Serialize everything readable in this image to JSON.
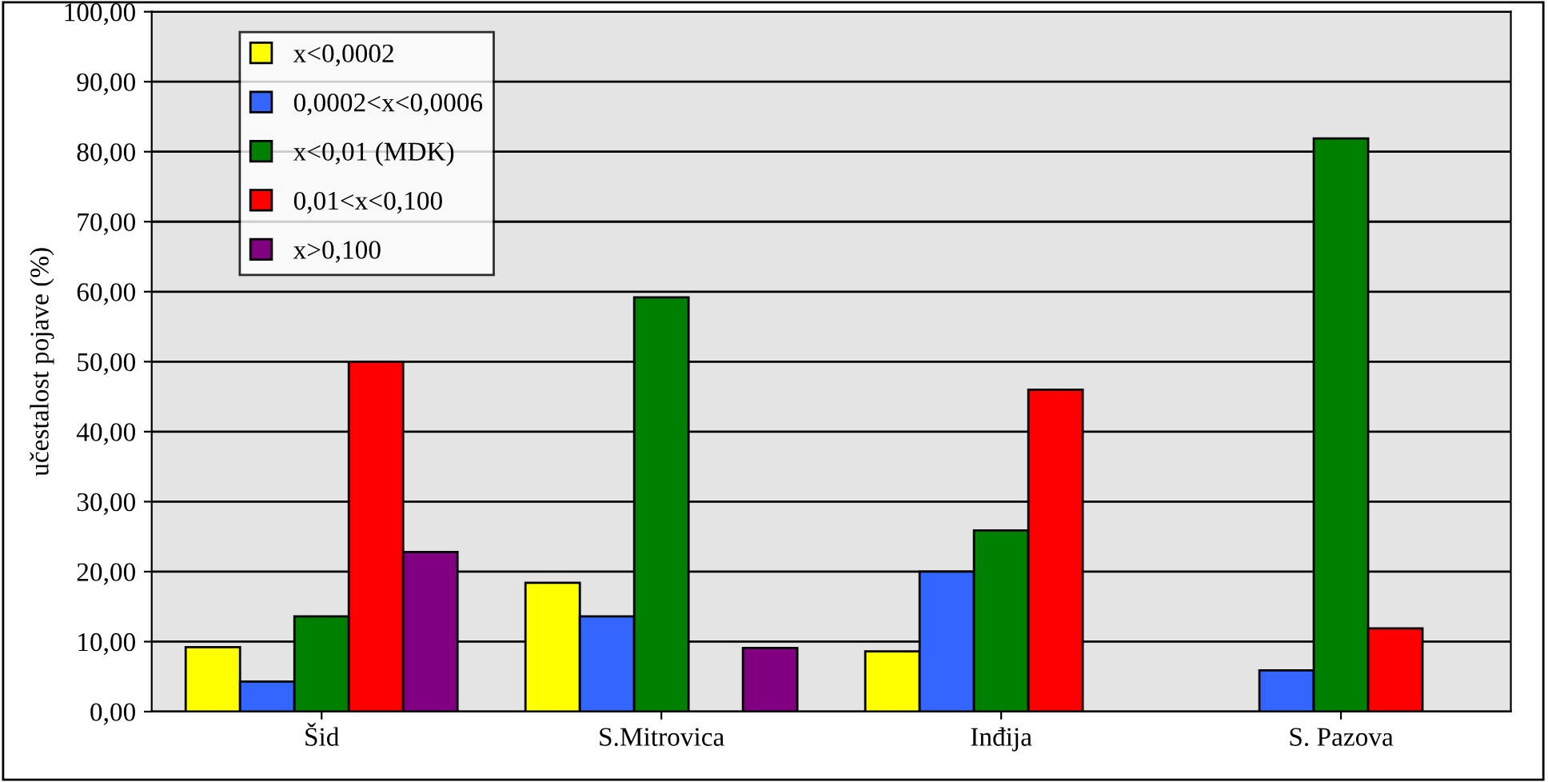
{
  "chart_data": {
    "type": "bar",
    "ylabel": "učestalost pojave (%)",
    "categories": [
      "Šid",
      "S.Mitrovica",
      "Inđija",
      "S. Pazova"
    ],
    "series": [
      {
        "name": "x<0,0002",
        "color": "#ffff00",
        "values": [
          9.2,
          18.4,
          8.6,
          null
        ]
      },
      {
        "name": "0,0002<x<0,0006",
        "color": "#3366ff",
        "values": [
          4.3,
          13.6,
          20.0,
          5.9
        ]
      },
      {
        "name": "x<0,01 (MDK)",
        "color": "#008000",
        "values": [
          13.6,
          59.2,
          25.9,
          81.9
        ]
      },
      {
        "name": "0,01<x<0,100",
        "color": "#ff0000",
        "values": [
          50.0,
          null,
          46.0,
          11.9
        ]
      },
      {
        "name": "x>0,100",
        "color": "#800080",
        "values": [
          22.8,
          9.1,
          null,
          null
        ]
      }
    ],
    "ylim": [
      0,
      100
    ],
    "yticks": [
      {
        "value": 0,
        "label": "0,00"
      },
      {
        "value": 10,
        "label": "10,00"
      },
      {
        "value": 20,
        "label": "20,00"
      },
      {
        "value": 30,
        "label": "30,00"
      },
      {
        "value": 40,
        "label": "40,00"
      },
      {
        "value": 50,
        "label": "50,00"
      },
      {
        "value": 60,
        "label": "60,00"
      },
      {
        "value": 70,
        "label": "70,00"
      },
      {
        "value": 80,
        "label": "80,00"
      },
      {
        "value": 90,
        "label": "90,00"
      },
      {
        "value": 100,
        "label": "100,00"
      }
    ],
    "grid": "y",
    "legend": "top left"
  }
}
